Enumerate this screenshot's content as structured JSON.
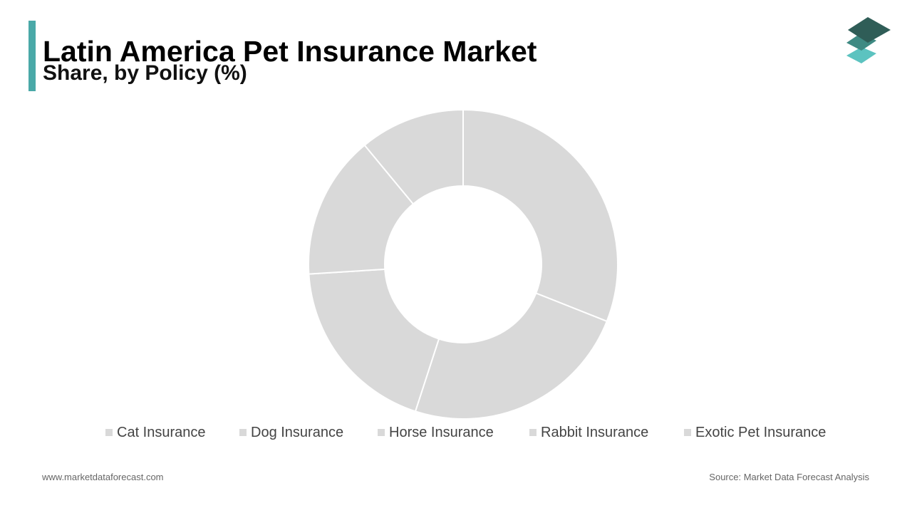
{
  "header": {
    "title": "Latin America Pet Insurance Market",
    "subtitle": "Share, by Policy (%)"
  },
  "logo": {
    "icon": "stacked-layers-icon",
    "colors": [
      "#2f5d57",
      "#3f8a83",
      "#5cc3c0"
    ]
  },
  "colors": {
    "accent": "#4aa9a8",
    "slice": "#d9d9d9",
    "separator": "#ffffff"
  },
  "chart_data": {
    "type": "pie",
    "style": "donut",
    "title": "Latin America Pet Insurance Market",
    "subtitle": "Share, by Policy (%)",
    "categories": [
      "Cat Insurance",
      "Dog Insurance",
      "Horse Insurance",
      "Rabbit Insurance",
      "Exotic Pet Insurance"
    ],
    "values": [
      31,
      24,
      19,
      15,
      11
    ],
    "legend": "bottom"
  },
  "footer": {
    "website": "www.marketdataforecast.com",
    "source": "Source: Market Data Forecast Analysis"
  }
}
